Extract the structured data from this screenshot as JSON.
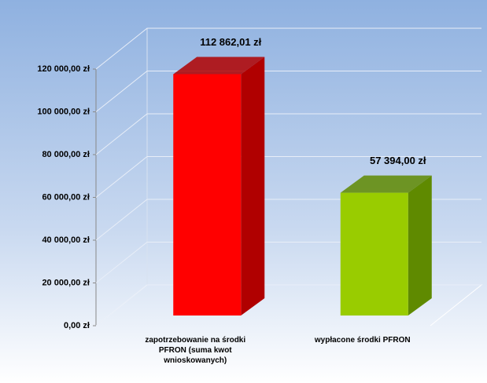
{
  "chart_data": {
    "type": "bar3d",
    "categories": [
      "zapotrzebowanie na środki PFRON (suma kwot wnioskowanych)",
      "wypłacone środki PFRON"
    ],
    "values": [
      112862.01,
      57394.0
    ],
    "value_labels": [
      "112 862,01 zł",
      "57 394,00 zł"
    ],
    "colors": [
      "#ff0000",
      "#99cc00"
    ],
    "side_colors": [
      "#b00000",
      "#5f8a00"
    ],
    "ylim": [
      0,
      120000
    ],
    "yticks": [
      {
        "value": 0,
        "label": "0,00 zł"
      },
      {
        "value": 20000,
        "label": "20 000,00 zł"
      },
      {
        "value": 40000,
        "label": "40 000,00 zł"
      },
      {
        "value": 60000,
        "label": "60 000,00 zł"
      },
      {
        "value": 80000,
        "label": "80 000,00 zł"
      },
      {
        "value": 100000,
        "label": "100 000,00 zł"
      },
      {
        "value": 120000,
        "label": "120 000,00 zł"
      }
    ],
    "grid": true
  }
}
